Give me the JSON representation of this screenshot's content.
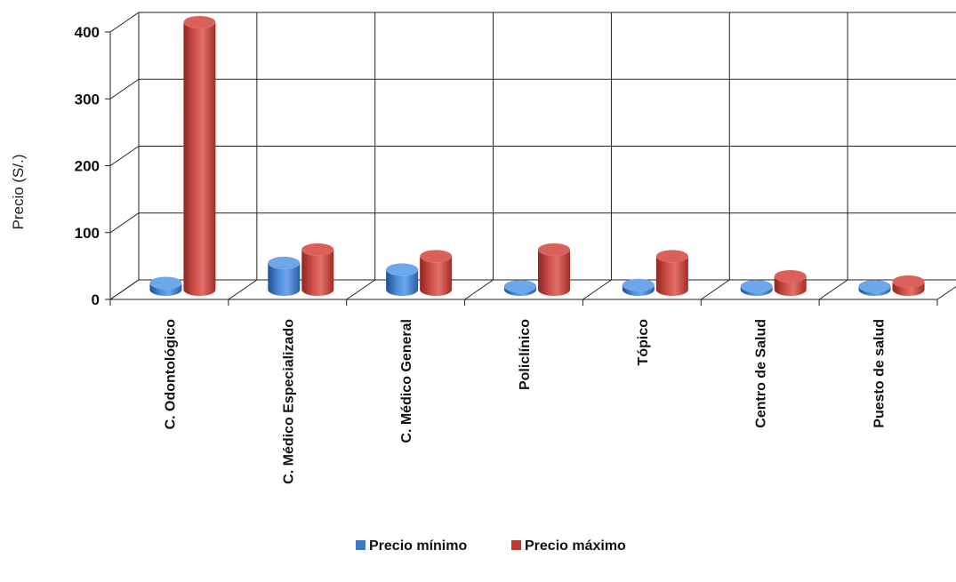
{
  "chart_data": {
    "type": "bar",
    "title": "",
    "xlabel": "",
    "ylabel": "Precio (S/.)",
    "ylim": [
      0,
      400
    ],
    "yticks": [
      "0",
      "100",
      "200",
      "300",
      "400"
    ],
    "grid": true,
    "legend_position": "bottom",
    "style": "3d-cylinder",
    "categories": [
      "C. Odontológico",
      "C. Médico Especializado",
      "C. Médico General",
      "Policlínico",
      "Tópico",
      "Centro de Salud",
      "Puesto de salud"
    ],
    "series": [
      {
        "name": "Precio mínimo",
        "color": "#3f78c4",
        "values": [
          10,
          40,
          30,
          5,
          7,
          5,
          5
        ]
      },
      {
        "name": "Precio máximo",
        "color": "#c0392f",
        "values": [
          400,
          60,
          50,
          60,
          50,
          20,
          12
        ]
      }
    ]
  }
}
